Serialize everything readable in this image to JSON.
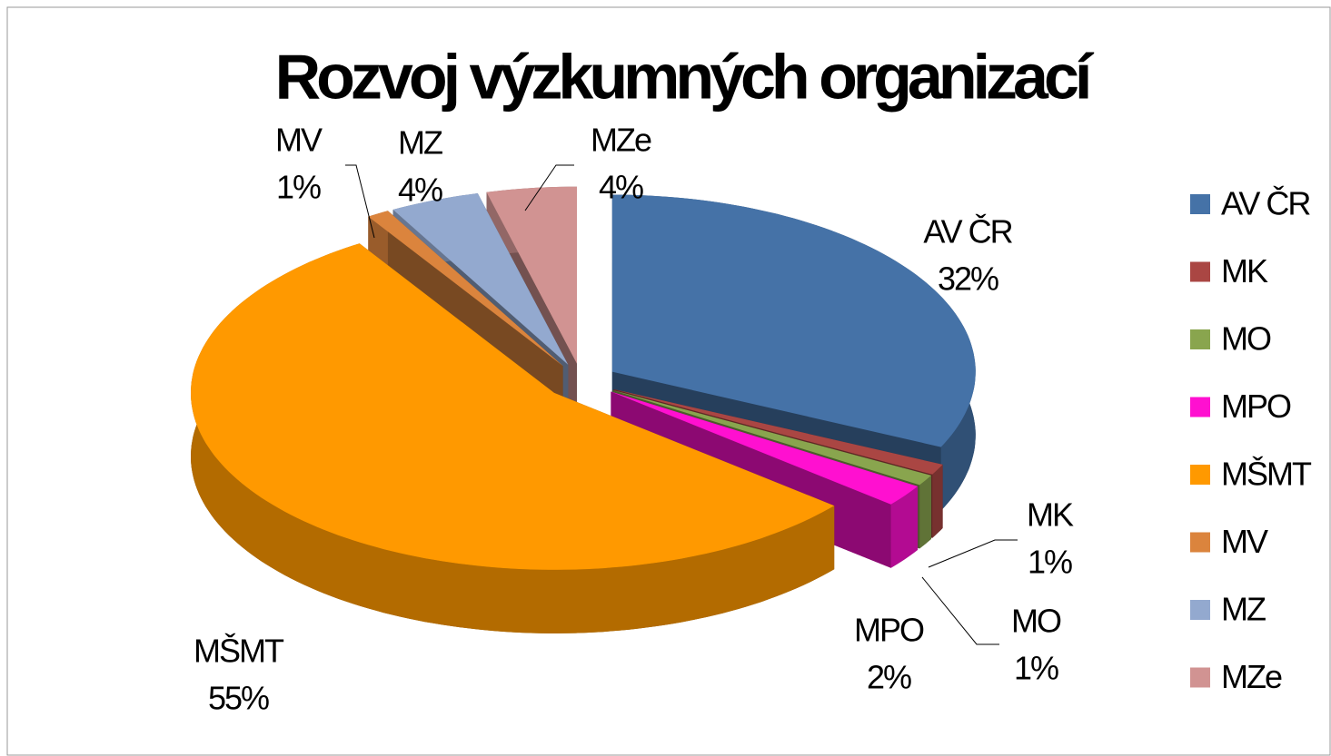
{
  "chart_data": {
    "type": "pie3d",
    "title": "Rozvoj výzkumných organizací",
    "categories": [
      "AV ČR",
      "MK",
      "MO",
      "MPO",
      "MŠMT",
      "MV",
      "MZ",
      "MZe"
    ],
    "values": [
      32,
      1,
      1,
      2,
      55,
      1,
      4,
      4
    ],
    "value_labels": [
      "32%",
      "1%",
      "1%",
      "2%",
      "55%",
      "1%",
      "4%",
      "4%"
    ],
    "colors": [
      "#4572a7",
      "#aa4643",
      "#89a54e",
      "#ff10d0",
      "#ff9900",
      "#db843d",
      "#93a9cf",
      "#d19392"
    ],
    "legend": "right"
  }
}
